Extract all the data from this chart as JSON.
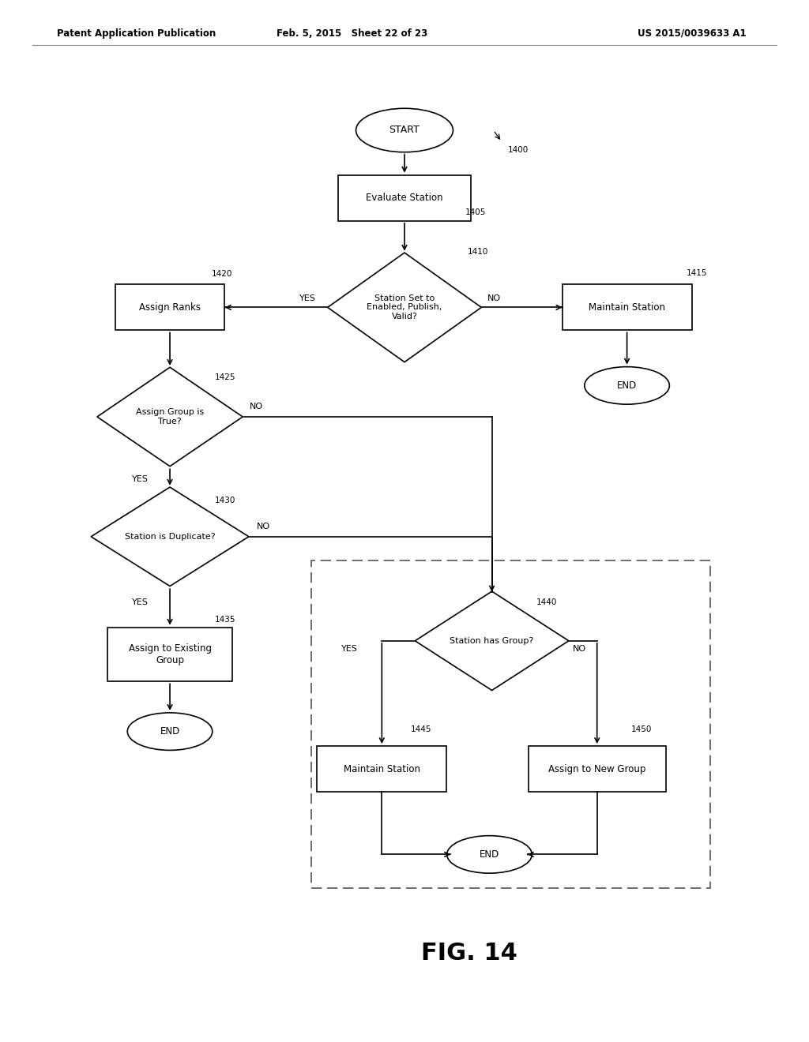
{
  "header_left": "Patent Application Publication",
  "header_mid": "Feb. 5, 2015   Sheet 22 of 23",
  "header_right": "US 2015/0039633 A1",
  "fig_label": "FIG. 14",
  "fig_number": "1400",
  "bg_color": "#ffffff",
  "line_color": "#000000",
  "text_color": "#000000"
}
